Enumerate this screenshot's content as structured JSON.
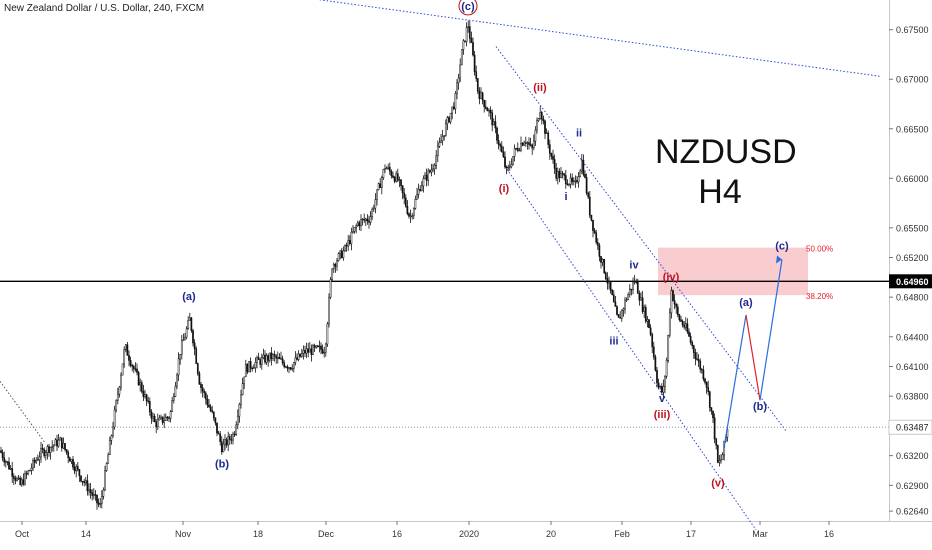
{
  "header": {
    "title": "New Zealand Dollar / U.S. Dollar, 240, FXCM"
  },
  "overlay": {
    "symbol": "NZDUSD",
    "timeframe": "H4"
  },
  "colors": {
    "candle": "#111111",
    "wave_red": "#c0131f",
    "wave_blue": "#1f2a8c",
    "channel": "#2a48d6",
    "zone_fill": "#f7b7bb",
    "fib_text": "#e0212e",
    "projection_blue": "#2a6de0",
    "projection_red": "#e0212e",
    "price_line": "#000000"
  },
  "chart_data": {
    "type": "candlestick",
    "title": "New Zealand Dollar / U.S. Dollar, 240, FXCM",
    "ylim": [
      0.6254,
      0.678
    ],
    "xlim": [
      0,
      880
    ],
    "y_ticks": [
      "0.67500",
      "0.67000",
      "0.66500",
      "0.66000",
      "0.65500",
      "0.65200",
      "0.64800",
      "0.64400",
      "0.64100",
      "0.63800",
      "0.63200",
      "0.62900",
      "0.62640"
    ],
    "x_ticks": [
      {
        "label": "Oct",
        "x": 22
      },
      {
        "label": "14",
        "x": 86
      },
      {
        "label": "Nov",
        "x": 183
      },
      {
        "label": "18",
        "x": 258
      },
      {
        "label": "Dec",
        "x": 326
      },
      {
        "label": "16",
        "x": 397
      },
      {
        "label": "2020",
        "x": 469
      },
      {
        "label": "20",
        "x": 551
      },
      {
        "label": "Feb",
        "x": 622
      },
      {
        "label": "17",
        "x": 691
      },
      {
        "label": "Mar",
        "x": 760
      },
      {
        "label": "16",
        "x": 829
      }
    ],
    "price_path": [
      [
        0,
        0.6325
      ],
      [
        20,
        0.629
      ],
      [
        40,
        0.6322
      ],
      [
        60,
        0.6335
      ],
      [
        80,
        0.63
      ],
      [
        100,
        0.6268
      ],
      [
        112,
        0.6345
      ],
      [
        125,
        0.643
      ],
      [
        140,
        0.6392
      ],
      [
        155,
        0.6352
      ],
      [
        170,
        0.636
      ],
      [
        180,
        0.6425
      ],
      [
        190,
        0.6458
      ],
      [
        200,
        0.6392
      ],
      [
        212,
        0.6362
      ],
      [
        222,
        0.6328
      ],
      [
        234,
        0.6342
      ],
      [
        245,
        0.6408
      ],
      [
        258,
        0.6415
      ],
      [
        272,
        0.642
      ],
      [
        290,
        0.641
      ],
      [
        305,
        0.6425
      ],
      [
        325,
        0.6428
      ],
      [
        332,
        0.6512
      ],
      [
        345,
        0.6528
      ],
      [
        358,
        0.6555
      ],
      [
        370,
        0.656
      ],
      [
        385,
        0.6612
      ],
      [
        398,
        0.6598
      ],
      [
        410,
        0.656
      ],
      [
        420,
        0.6592
      ],
      [
        432,
        0.661
      ],
      [
        445,
        0.665
      ],
      [
        455,
        0.6678
      ],
      [
        462,
        0.6728
      ],
      [
        468,
        0.6756
      ],
      [
        478,
        0.6688
      ],
      [
        490,
        0.6665
      ],
      [
        500,
        0.6632
      ],
      [
        507,
        0.6605
      ],
      [
        515,
        0.6628
      ],
      [
        525,
        0.664
      ],
      [
        532,
        0.6628
      ],
      [
        540,
        0.6672
      ],
      [
        548,
        0.6635
      ],
      [
        556,
        0.6605
      ],
      [
        565,
        0.66
      ],
      [
        575,
        0.6592
      ],
      [
        582,
        0.6618
      ],
      [
        590,
        0.6565
      ],
      [
        598,
        0.653
      ],
      [
        605,
        0.6505
      ],
      [
        612,
        0.648
      ],
      [
        618,
        0.6455
      ],
      [
        626,
        0.6478
      ],
      [
        635,
        0.6498
      ],
      [
        642,
        0.6472
      ],
      [
        650,
        0.6448
      ],
      [
        658,
        0.639
      ],
      [
        663,
        0.6383
      ],
      [
        667,
        0.642
      ],
      [
        671,
        0.6488
      ],
      [
        678,
        0.646
      ],
      [
        686,
        0.6448
      ],
      [
        696,
        0.642
      ],
      [
        706,
        0.6395
      ],
      [
        713,
        0.6355
      ],
      [
        718,
        0.631
      ],
      [
        722,
        0.6318
      ],
      [
        728,
        0.635
      ]
    ],
    "horizontal_lines": [
      {
        "price": 0.6496,
        "label": "0.64960",
        "style": "solid"
      },
      {
        "price": 0.63487,
        "label": "0.63487",
        "style": "dotted"
      }
    ],
    "fib_zone": {
      "levels": [
        "50.00%",
        "38.20%"
      ],
      "top": 0.653,
      "bottom": 0.6482
    },
    "wave_labels": [
      {
        "text": "(c)",
        "x": 468,
        "price": 0.677,
        "color": "wave_blue",
        "circled": true
      },
      {
        "text": "(a)",
        "x": 189,
        "price": 0.6477,
        "color": "wave_blue"
      },
      {
        "text": "(b)",
        "x": 222,
        "price": 0.6308,
        "color": "wave_blue"
      },
      {
        "text": "(i)",
        "x": 504,
        "price": 0.6586,
        "color": "wave_red"
      },
      {
        "text": "(ii)",
        "x": 540,
        "price": 0.6688,
        "color": "wave_red"
      },
      {
        "text": "ii",
        "x": 579,
        "price": 0.6642,
        "color": "wave_blue"
      },
      {
        "text": "i",
        "x": 566,
        "price": 0.6578,
        "color": "wave_blue"
      },
      {
        "text": "iv",
        "x": 634,
        "price": 0.6509,
        "color": "wave_blue"
      },
      {
        "text": "(iv)",
        "x": 671,
        "price": 0.6497,
        "color": "wave_red"
      },
      {
        "text": "iii",
        "x": 614,
        "price": 0.6432,
        "color": "wave_blue"
      },
      {
        "text": "v",
        "x": 662,
        "price": 0.6374,
        "color": "wave_blue"
      },
      {
        "text": "(iii)",
        "x": 662,
        "price": 0.6358,
        "color": "wave_red"
      },
      {
        "text": "(v)",
        "x": 718,
        "price": 0.6289,
        "color": "wave_red"
      },
      {
        "text": "(a)",
        "x": 746,
        "price": 0.6471,
        "color": "wave_blue"
      },
      {
        "text": "(b)",
        "x": 760,
        "price": 0.6366,
        "color": "wave_blue"
      },
      {
        "text": "(c)",
        "x": 782,
        "price": 0.6528,
        "color": "wave_blue"
      }
    ],
    "projection": [
      {
        "from": [
          724,
          0.6328
        ],
        "to": [
          746,
          0.6462
        ],
        "color": "projection_blue"
      },
      {
        "from": [
          746,
          0.6462
        ],
        "to": [
          760,
          0.6376
        ],
        "color": "projection_red"
      },
      {
        "from": [
          760,
          0.6376
        ],
        "to": [
          782,
          0.6518
        ],
        "color": "projection_blue"
      }
    ],
    "trendlines": [
      {
        "from": [
          285,
          0.6785
        ],
        "to": [
          880,
          0.6703
        ],
        "style": "dotted"
      },
      {
        "from": [
          496,
          0.6733
        ],
        "to": [
          786,
          0.6345
        ],
        "style": "dotted"
      },
      {
        "from": [
          505,
          0.6612
        ],
        "to": [
          756,
          0.6245
        ],
        "style": "dotted"
      },
      {
        "from": [
          0,
          0.6395
        ],
        "to": [
          45,
          0.6333
        ],
        "style": "dotted"
      }
    ]
  }
}
